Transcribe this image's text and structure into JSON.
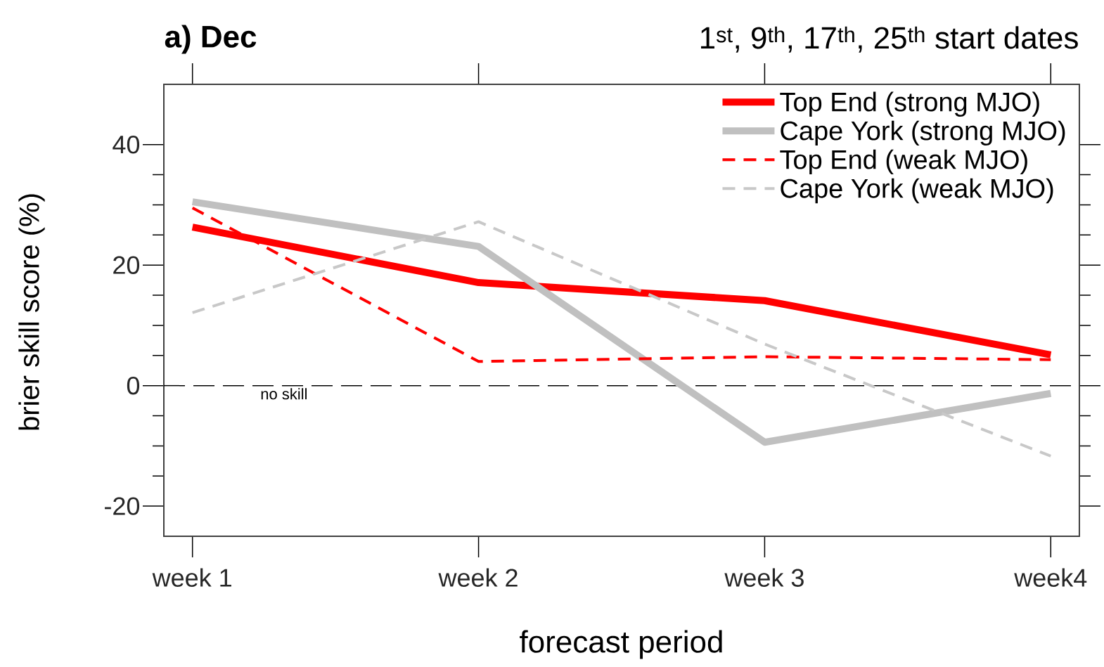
{
  "chart_data": {
    "type": "line",
    "title": "a) Dec",
    "subtitle": "1$^{st}$, 9$^{th}$, 17$^{th}$, 25$^{th}$ start dates",
    "xlabel": "forecast period",
    "ylabel": "brier skill score (%)",
    "categories": [
      "week 1",
      "week 2",
      "week 3",
      "week4"
    ],
    "series": [
      {
        "name": "Top End (strong MJO)",
        "color": "#ff0000",
        "line_style": "solid",
        "values": [
          26.3,
          17.1,
          14.1,
          5.1
        ]
      },
      {
        "name": "Cape York (strong MJO)",
        "color": "#c0c0c0",
        "line_style": "solid",
        "values": [
          30.5,
          23.1,
          -9.4,
          -1.3
        ]
      },
      {
        "name": "Top End (weak MJO)",
        "color": "#ff0000",
        "line_style": "dashed",
        "values": [
          29.5,
          4.0,
          4.8,
          4.3
        ]
      },
      {
        "name": "Cape York (weak MJO)",
        "color": "#c8c8c8",
        "line_style": "dashed",
        "values": [
          12.1,
          27.2,
          6.9,
          -11.7
        ]
      }
    ],
    "ylim": [
      -25,
      50
    ],
    "yticks": [
      -20,
      0,
      20,
      40
    ],
    "ref_lines": [
      {
        "axis": "y",
        "value": 0,
        "label": "no skill",
        "color": "#000000",
        "line_style": "dashed"
      }
    ],
    "legend": "top right",
    "grid": false,
    "marker": "none"
  }
}
